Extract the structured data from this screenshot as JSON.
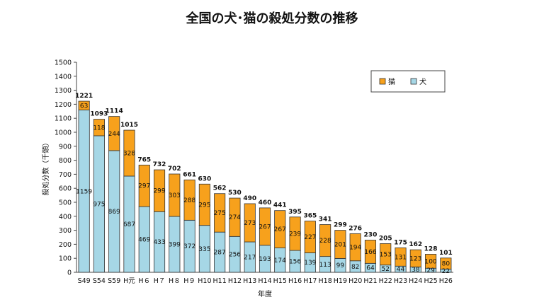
{
  "chart_data": {
    "type": "bar",
    "stacked": true,
    "title": "全国の犬･猫の殺処分数の推移",
    "xlabel": "年度",
    "ylabel": "殺処分数（千頭）",
    "ylim": [
      0,
      1500
    ],
    "ytick_step": 100,
    "categories": [
      "S49",
      "S54",
      "S59",
      "H元",
      "H６",
      "H７",
      "H８",
      "H９",
      "H10",
      "H11",
      "H12",
      "H13",
      "H14",
      "H15",
      "H16",
      "H17",
      "H18",
      "H19",
      "H20",
      "H21",
      "H22",
      "H23",
      "H24",
      "H25",
      "H26"
    ],
    "series": [
      {
        "name": "犬",
        "color": "#a6d7e6",
        "values": [
          1159,
          975,
          869,
          687,
          469,
          433,
          399,
          372,
          335,
          287,
          256,
          217,
          193,
          174,
          156,
          139,
          113,
          99,
          82,
          64,
          52,
          44,
          38,
          29,
          22
        ]
      },
      {
        "name": "猫",
        "color": "#f7a11c",
        "values": [
          63,
          118,
          244,
          328,
          297,
          299,
          303,
          288,
          295,
          275,
          274,
          273,
          267,
          267,
          239,
          227,
          228,
          201,
          194,
          166,
          153,
          131,
          123,
          100,
          80
        ]
      }
    ],
    "totals": [
      1221,
      1093,
      1114,
      1015,
      765,
      732,
      702,
      661,
      630,
      562,
      530,
      490,
      460,
      441,
      395,
      365,
      341,
      299,
      276,
      230,
      205,
      175,
      162,
      128,
      101
    ],
    "legend_position": "top-right",
    "legend_order": [
      "猫",
      "犬"
    ],
    "grid": false
  }
}
